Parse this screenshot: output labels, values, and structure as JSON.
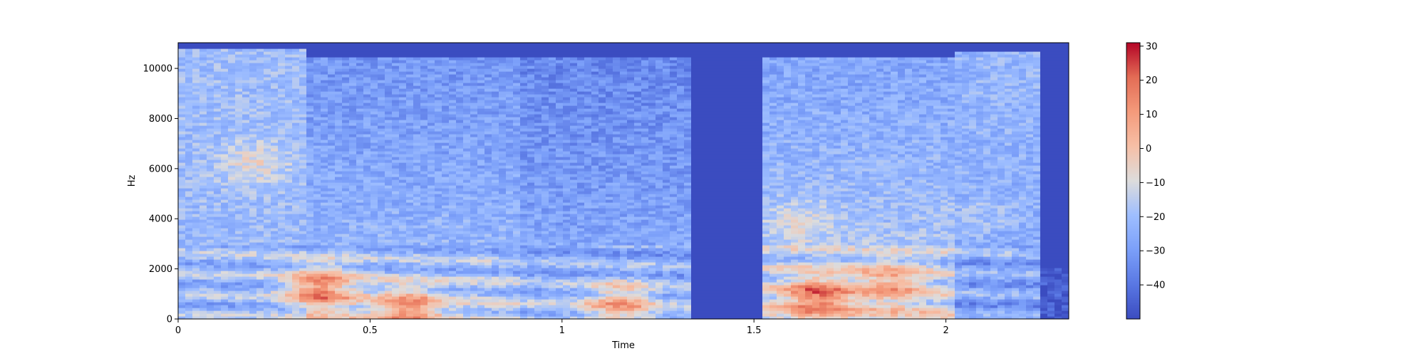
{
  "chart_data": {
    "type": "heatmap",
    "title": "",
    "xlabel": "Time",
    "ylabel": "Hz",
    "xlim": [
      0,
      2.32
    ],
    "ylim": [
      0,
      11025
    ],
    "x_ticks": [
      0,
      0.5,
      1,
      1.5,
      2
    ],
    "x_tick_labels": [
      "0",
      "0.5",
      "1",
      "1.5",
      "2"
    ],
    "y_ticks": [
      0,
      2000,
      4000,
      6000,
      8000,
      10000
    ],
    "y_tick_labels": [
      "0",
      "2000",
      "4000",
      "6000",
      "8000",
      "10000"
    ],
    "colormap": "coolwarm",
    "colorbar": {
      "range": [
        -50,
        31
      ],
      "ticks": [
        30,
        20,
        10,
        0,
        -10,
        -20,
        -30,
        -40
      ],
      "tick_labels": [
        "30",
        "20",
        "10",
        "0",
        "−10",
        "−20",
        "−30",
        "−40"
      ]
    },
    "grid": false,
    "segments": [
      {
        "t_start": 0.0,
        "t_end": 0.33,
        "low_db": -22,
        "high_db": -20,
        "top_hz": 10800
      },
      {
        "t_start": 0.33,
        "t_end": 0.9,
        "low_db": -10,
        "high_db": -32,
        "top_hz": 10500
      },
      {
        "t_start": 0.9,
        "t_end": 1.33,
        "low_db": -15,
        "high_db": -36,
        "top_hz": 10400
      },
      {
        "t_start": 1.33,
        "t_end": 1.52,
        "low_db": -50,
        "high_db": -50,
        "top_hz": 0
      },
      {
        "t_start": 1.52,
        "t_end": 2.02,
        "low_db": -5,
        "high_db": -28,
        "top_hz": 10500
      },
      {
        "t_start": 2.02,
        "t_end": 2.25,
        "low_db": -30,
        "high_db": -22,
        "top_hz": 10700
      },
      {
        "t_start": 2.25,
        "t_end": 2.32,
        "low_db": -45,
        "high_db": -48,
        "top_hz": 2000
      }
    ],
    "hot_regions": [
      {
        "t_center": 0.37,
        "hz_center": 1200,
        "db": 22
      },
      {
        "t_center": 0.2,
        "hz_center": 6200,
        "db": -5
      },
      {
        "t_center": 0.6,
        "hz_center": 350,
        "db": 18
      },
      {
        "t_center": 1.15,
        "hz_center": 600,
        "db": 10
      },
      {
        "t_center": 1.67,
        "hz_center": 900,
        "db": 24
      },
      {
        "t_center": 1.85,
        "hz_center": 1400,
        "db": 12
      },
      {
        "t_center": 1.62,
        "hz_center": 3800,
        "db": -8
      },
      {
        "t_center": 2.1,
        "hz_center": 4200,
        "db": -18
      }
    ]
  }
}
